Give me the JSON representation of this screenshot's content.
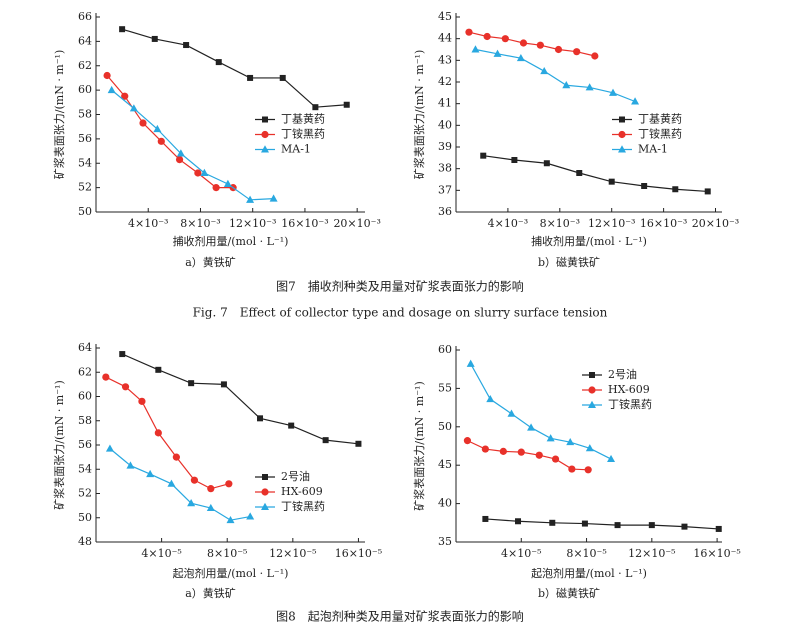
{
  "figures": [
    {
      "title": "图7　捕收剂种类及用量对矿浆表面张力的影响",
      "title_en": "Fig. 7　Effect of collector type and dosage on slurry surface tension"
    },
    {
      "title": "图8　起泡剂种类及用量对矿浆表面张力的影响"
    }
  ],
  "chart_data": [
    {
      "type": "line",
      "caption": "a）黄铁矿",
      "xlabel": "捕收剂用量/(mol · L⁻¹)",
      "ylabel": "矿浆表面张力/(mN · m⁻¹)",
      "xlim": [
        0,
        0.0206
      ],
      "ylim": [
        50,
        66
      ],
      "xticks": [
        {
          "value": 0.004,
          "label": "4×10⁻³"
        },
        {
          "value": 0.008,
          "label": "8×10⁻³"
        },
        {
          "value": 0.012,
          "label": "12×10⁻³"
        },
        {
          "value": 0.016,
          "label": "16×10⁻³"
        },
        {
          "value": 0.02,
          "label": "20×10⁻³"
        }
      ],
      "yticks": [
        50,
        52,
        54,
        56,
        58,
        60,
        62,
        64,
        66
      ],
      "legend": "center right",
      "series": [
        {
          "name": "丁基黄药",
          "color": "#222222",
          "marker": "square",
          "x": [
            0.002,
            0.0045,
            0.0069,
            0.0094,
            0.0118,
            0.0143,
            0.0168,
            0.0192
          ],
          "values": [
            65.0,
            64.2,
            63.7,
            62.3,
            61.0,
            61.0,
            58.6,
            58.8
          ]
        },
        {
          "name": "丁铵黑药",
          "color": "#e8312a",
          "marker": "circle",
          "x": [
            0.00085,
            0.0022,
            0.0036,
            0.005,
            0.0064,
            0.0078,
            0.0092,
            0.0105
          ],
          "values": [
            61.2,
            59.5,
            57.3,
            55.8,
            54.3,
            53.2,
            52.0,
            52.0
          ]
        },
        {
          "name": "MA-1",
          "color": "#29a8e0",
          "marker": "triangle",
          "x": [
            0.0012,
            0.0029,
            0.0047,
            0.0065,
            0.0083,
            0.0101,
            0.0118,
            0.0136
          ],
          "values": [
            60.0,
            58.5,
            56.8,
            54.8,
            53.2,
            52.3,
            51.0,
            51.1
          ]
        }
      ]
    },
    {
      "type": "line",
      "caption": "b）磁黄铁矿",
      "xlabel": "捕收剂用量/(mol · L⁻¹)",
      "ylabel": "矿浆表面张力/(mN · m⁻¹)",
      "xlim": [
        0,
        0.0205
      ],
      "ylim": [
        36,
        45
      ],
      "xticks": [
        {
          "value": 0.004,
          "label": "4×10⁻³"
        },
        {
          "value": 0.008,
          "label": "8×10⁻³"
        },
        {
          "value": 0.012,
          "label": "12×10⁻³"
        },
        {
          "value": 0.016,
          "label": "16×10⁻³"
        },
        {
          "value": 0.02,
          "label": "20×10⁻³"
        }
      ],
      "yticks": [
        36,
        37,
        38,
        39,
        40,
        41,
        42,
        43,
        44,
        45
      ],
      "legend": "center right",
      "series": [
        {
          "name": "丁基黄药",
          "color": "#222222",
          "marker": "square",
          "x": [
            0.0021,
            0.0045,
            0.007,
            0.0095,
            0.012,
            0.0145,
            0.0169,
            0.0194
          ],
          "values": [
            38.6,
            38.4,
            38.25,
            37.8,
            37.4,
            37.2,
            37.05,
            36.95
          ]
        },
        {
          "name": "丁铵黑药",
          "color": "#e8312a",
          "marker": "circle",
          "x": [
            0.001,
            0.0024,
            0.0038,
            0.0052,
            0.0065,
            0.0079,
            0.0093,
            0.0107
          ],
          "values": [
            44.3,
            44.1,
            44.0,
            43.8,
            43.7,
            43.5,
            43.4,
            43.2
          ]
        },
        {
          "name": "MA-1",
          "color": "#29a8e0",
          "marker": "triangle",
          "x": [
            0.0015,
            0.0032,
            0.005,
            0.0068,
            0.0085,
            0.0103,
            0.0121,
            0.0138
          ],
          "values": [
            43.5,
            43.3,
            43.1,
            42.5,
            41.85,
            41.75,
            41.5,
            41.1
          ]
        }
      ]
    },
    {
      "type": "line",
      "caption": "a）黄铁矿",
      "xlabel": "起泡剂用量/(mol · L⁻¹)",
      "ylabel": "矿浆表面张力/(mN · m⁻¹)",
      "xlim": [
        0,
        0.000164
      ],
      "ylim": [
        48,
        64
      ],
      "xticks": [
        {
          "value": 4e-05,
          "label": "4×10⁻⁵"
        },
        {
          "value": 8e-05,
          "label": "8×10⁻⁵"
        },
        {
          "value": 0.00012,
          "label": "12×10⁻⁵"
        },
        {
          "value": 0.00016,
          "label": "16×10⁻⁵"
        }
      ],
      "yticks": [
        48,
        50,
        52,
        54,
        56,
        58,
        60,
        62,
        64
      ],
      "legend": "lower right",
      "series": [
        {
          "name": "2号油",
          "color": "#222222",
          "marker": "square",
          "x": [
            1.6e-05,
            3.8e-05,
            5.8e-05,
            7.8e-05,
            0.0001,
            0.000119,
            0.00014,
            0.00016
          ],
          "values": [
            63.5,
            62.2,
            61.1,
            61.0,
            58.2,
            57.6,
            56.4,
            56.1
          ]
        },
        {
          "name": "HX-609",
          "color": "#e8312a",
          "marker": "circle",
          "x": [
            6e-06,
            1.8e-05,
            2.8e-05,
            3.8e-05,
            4.9e-05,
            6e-05,
            7e-05,
            8.1e-05
          ],
          "values": [
            61.6,
            60.8,
            59.6,
            57.0,
            55.0,
            53.1,
            52.4,
            52.8
          ]
        },
        {
          "name": "丁铵黑药",
          "color": "#29a8e0",
          "marker": "triangle",
          "x": [
            8.5e-06,
            2.1e-05,
            3.3e-05,
            4.6e-05,
            5.8e-05,
            7e-05,
            8.2e-05,
            9.4e-05
          ],
          "values": [
            55.7,
            54.3,
            53.6,
            52.8,
            51.2,
            50.8,
            49.8,
            50.1
          ]
        }
      ]
    },
    {
      "type": "line",
      "caption": "b）磁黄铁矿",
      "xlabel": "起泡剂用量/(mol · L⁻¹)",
      "ylabel": "矿浆表面张力/(mN · m⁻¹)",
      "xlim": [
        0,
        0.000163
      ],
      "ylim": [
        35,
        60
      ],
      "xticks": [
        {
          "value": 4e-05,
          "label": "4×10⁻⁵"
        },
        {
          "value": 8e-05,
          "label": "8×10⁻⁵"
        },
        {
          "value": 0.00012,
          "label": "12×10⁻⁵"
        },
        {
          "value": 0.00016,
          "label": "16×10⁻⁵"
        }
      ],
      "yticks": [
        35,
        40,
        45,
        50,
        55,
        60
      ],
      "legend": "upper right",
      "series": [
        {
          "name": "2号油",
          "color": "#222222",
          "marker": "square",
          "x": [
            1.8e-05,
            3.8e-05,
            5.9e-05,
            7.9e-05,
            9.9e-05,
            0.00012,
            0.00014,
            0.000161
          ],
          "values": [
            38.0,
            37.7,
            37.5,
            37.4,
            37.2,
            37.2,
            37.0,
            36.7
          ]
        },
        {
          "name": "HX-609",
          "color": "#e8312a",
          "marker": "circle",
          "x": [
            7e-06,
            1.8e-05,
            2.9e-05,
            4e-05,
            5.1e-05,
            6.1e-05,
            7.1e-05,
            8.1e-05
          ],
          "values": [
            48.2,
            47.1,
            46.8,
            46.7,
            46.3,
            45.8,
            44.5,
            44.4
          ]
        },
        {
          "name": "丁铵黑药",
          "color": "#29a8e0",
          "marker": "triangle",
          "x": [
            9e-06,
            2.1e-05,
            3.4e-05,
            4.6e-05,
            5.8e-05,
            7e-05,
            8.2e-05,
            9.5e-05
          ],
          "values": [
            58.2,
            53.6,
            51.7,
            49.9,
            48.5,
            48.0,
            47.2,
            45.8
          ]
        }
      ]
    }
  ]
}
